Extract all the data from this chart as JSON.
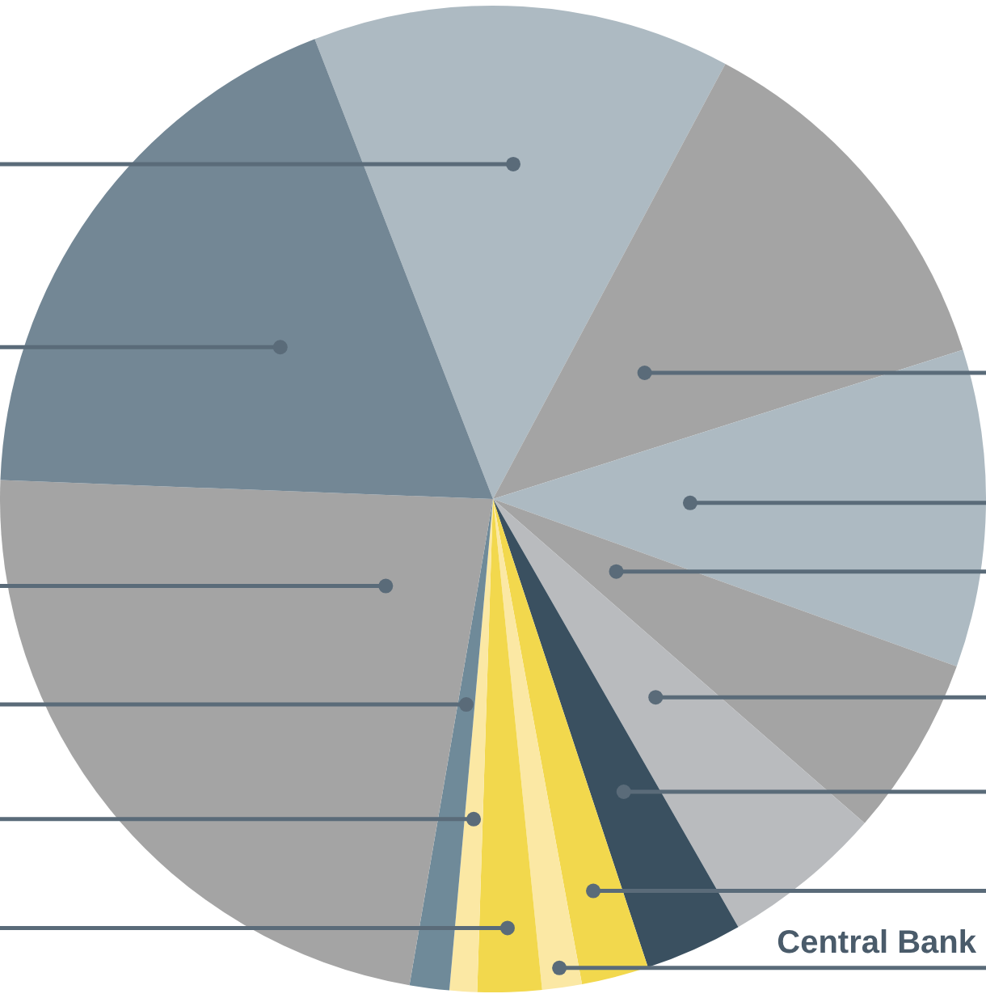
{
  "chart_data": {
    "type": "pie",
    "categories": [
      null,
      null,
      null,
      null,
      null,
      null,
      null,
      "Central Bank",
      null,
      null,
      null,
      null,
      null
    ],
    "values": [
      13.7,
      12.3,
      10.4,
      5.9,
      5.3,
      3.2,
      2.2,
      1.3,
      2.1,
      0.9,
      1.3,
      22.9,
      18.5
    ],
    "colors": [
      "#adbac2",
      "#a4a4a4",
      "#adbac2",
      "#a4a4a4",
      "#b9bbbe",
      "#3a5060",
      "#f2d84d",
      "#fbe8a4",
      "#f2d84d",
      "#fbe8a4",
      "#6f8a99",
      "#a4a4a4",
      "#738795"
    ]
  }
}
